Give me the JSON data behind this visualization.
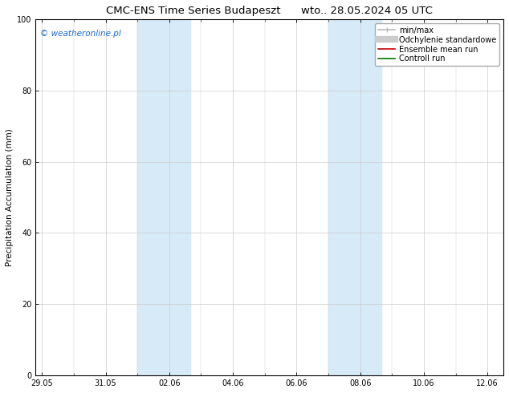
{
  "title": "CMC-ENS Time Series Budapeszt      wto.. 28.05.2024 05 UTC",
  "ylabel": "Precipitation Accumulation (mm)",
  "ylim": [
    0,
    100
  ],
  "yticks": [
    0,
    20,
    40,
    60,
    80,
    100
  ],
  "xtick_labels": [
    "29.05",
    "31.05",
    "02.06",
    "04.06",
    "06.06",
    "08.06",
    "10.06",
    "12.06"
  ],
  "xtick_positions": [
    0,
    2,
    4,
    6,
    8,
    10,
    12,
    14
  ],
  "xlim": [
    -0.2,
    14.5
  ],
  "watermark": "© weatheronline.pl",
  "watermark_color": "#1a6acc",
  "bg_color": "#ffffff",
  "plot_bg_color": "#ffffff",
  "shade_bands": [
    {
      "xstart": 3.0,
      "xend": 4.67,
      "color": "#d6eaf8"
    },
    {
      "xstart": 9.0,
      "xend": 10.67,
      "color": "#d6eaf8"
    }
  ],
  "legend_items": [
    {
      "label": "min/max",
      "color": "#bbbbbb",
      "lw": 1.2
    },
    {
      "label": "Odchylenie standardowe",
      "color": "#cccccc",
      "lw": 5
    },
    {
      "label": "Ensemble mean run",
      "color": "#cc0000",
      "lw": 1.2
    },
    {
      "label": "Controll run",
      "color": "#007700",
      "lw": 1.2
    }
  ],
  "title_fontsize": 9.5,
  "axis_fontsize": 7.5,
  "tick_fontsize": 7,
  "watermark_fontsize": 7.5,
  "legend_fontsize": 7,
  "grid_color": "#cccccc",
  "border_color": "#000000"
}
